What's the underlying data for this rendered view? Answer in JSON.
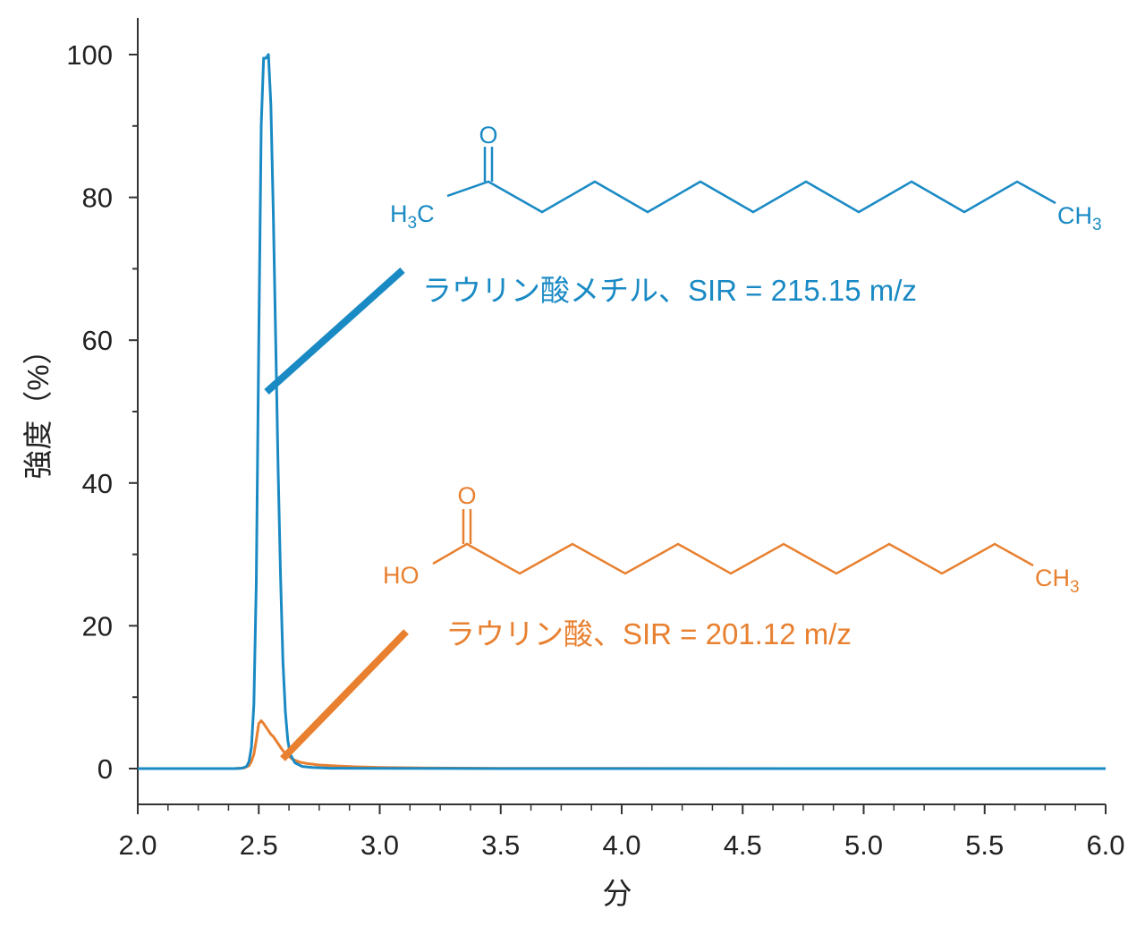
{
  "chart_data": {
    "type": "line",
    "xlabel": "分",
    "ylabel": "強度（%）",
    "xlim": [
      2.0,
      6.0
    ],
    "ylim": [
      -5,
      105
    ],
    "x_ticks": [
      "2.0",
      "2.5",
      "3.0",
      "3.5",
      "4.0",
      "4.5",
      "5.0",
      "5.5",
      "6.0"
    ],
    "y_ticks": [
      "0",
      "20",
      "40",
      "60",
      "80",
      "100"
    ],
    "colors": {
      "methyl": "#1a8ac4",
      "acid": "#e8802f",
      "axis": "#333333"
    },
    "series": [
      {
        "id": "methyl",
        "x": [
          2.0,
          2.4,
          2.43,
          2.45,
          2.46,
          2.47,
          2.48,
          2.49,
          2.5,
          2.51,
          2.52,
          2.53,
          2.54,
          2.55,
          2.56,
          2.57,
          2.58,
          2.59,
          2.6,
          2.61,
          2.62,
          2.63,
          2.65,
          2.68,
          2.72,
          2.8,
          3.0,
          3.5,
          4.0,
          5.0,
          6.0
        ],
        "y": [
          0,
          0,
          0.05,
          0.3,
          1.0,
          3.0,
          9.0,
          26.0,
          60.0,
          90.0,
          99.5,
          99.5,
          100.0,
          93.0,
          78.0,
          60.0,
          42.0,
          27.0,
          15.0,
          8.0,
          4.0,
          2.0,
          0.8,
          0.3,
          0.15,
          0.05,
          0.02,
          0,
          0,
          0,
          0
        ]
      },
      {
        "id": "acid",
        "x": [
          2.0,
          2.4,
          2.44,
          2.46,
          2.47,
          2.48,
          2.49,
          2.5,
          2.51,
          2.52,
          2.53,
          2.54,
          2.55,
          2.56,
          2.57,
          2.58,
          2.59,
          2.6,
          2.62,
          2.64,
          2.67,
          2.7,
          2.75,
          2.8,
          2.9,
          3.0,
          3.2,
          3.5,
          4.0,
          5.0,
          6.0
        ],
        "y": [
          0,
          0,
          0.1,
          0.4,
          1.0,
          2.0,
          4.0,
          6.3,
          6.7,
          6.3,
          5.8,
          5.3,
          4.8,
          4.5,
          4.0,
          3.5,
          3.0,
          2.5,
          1.8,
          1.3,
          0.9,
          0.7,
          0.5,
          0.4,
          0.25,
          0.15,
          0.08,
          0.04,
          0.02,
          0,
          0
        ]
      }
    ],
    "annotations": [
      {
        "id": "methyl",
        "text": "ラウリン酸メチル、SIR = 215.15 m/z",
        "color": "#1a8ac4",
        "molecule": {
          "o": "O",
          "left_h": "H",
          "left_sub": "3",
          "left_c": "C",
          "right_ch": "CH",
          "right_sub": "3"
        }
      },
      {
        "id": "acid",
        "text": "ラウリン酸、SIR = 201.12 m/z",
        "color": "#e8802f",
        "molecule": {
          "o": "O",
          "left_group": "HO",
          "right_ch": "CH",
          "right_sub": "3"
        }
      }
    ]
  }
}
